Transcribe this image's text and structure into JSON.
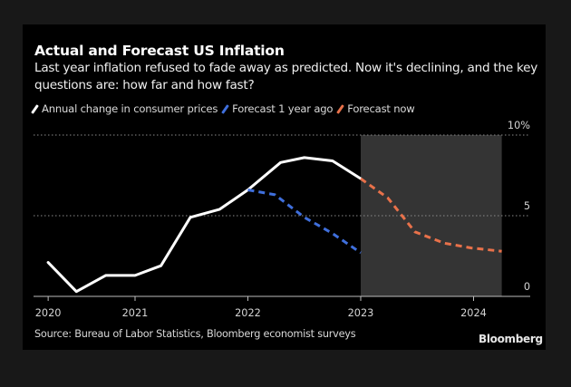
{
  "header": {
    "title": "Actual and Forecast US Inflation",
    "subtitle": "Last year inflation refused to fade away as predicted. Now it's declining, and the key questions are: how far and how fast?"
  },
  "footer": {
    "source": "Source: Bureau of Labor Statistics, Bloomberg economist surveys",
    "brand": "Bloomberg"
  },
  "chart_data": {
    "type": "line",
    "title": "Actual and Forecast US Inflation",
    "subtitle": "Last year inflation refused to fade away as predicted. Now it's declining, and the key questions are: how far and how fast?",
    "xlabel": "",
    "ylabel": "",
    "ylim": [
      0,
      10
    ],
    "y_ticks": [
      {
        "value": 0,
        "label": "0"
      },
      {
        "value": 5,
        "label": "5"
      },
      {
        "value": 10,
        "label": "10%"
      }
    ],
    "x_ticks": [
      {
        "value": 2020.23,
        "label": "2020"
      },
      {
        "value": 2021.0,
        "label": "2021"
      },
      {
        "value": 2022.0,
        "label": "2022"
      },
      {
        "value": 2023.0,
        "label": "2023"
      },
      {
        "value": 2024.0,
        "label": "2024"
      }
    ],
    "xlim": [
      2020.1,
      2025.0
    ],
    "grid": true,
    "legend_position": "top-left",
    "shaded_region": {
      "x_start": 2023.0,
      "x_end": 2024.25,
      "label": "forecast period"
    },
    "series": [
      {
        "name": "Annual change in consumer prices",
        "color": "#ffffff",
        "style": "solid",
        "points": [
          [
            2020.23,
            2.1
          ],
          [
            2020.48,
            0.3
          ],
          [
            2020.74,
            1.3
          ],
          [
            2021.0,
            1.3
          ],
          [
            2021.23,
            1.9
          ],
          [
            2021.49,
            4.9
          ],
          [
            2021.75,
            5.4
          ],
          [
            2022.0,
            6.6
          ],
          [
            2022.29,
            8.3
          ],
          [
            2022.5,
            8.6
          ],
          [
            2022.75,
            8.4
          ],
          [
            2023.0,
            7.3
          ]
        ]
      },
      {
        "name": "Forecast 1 year ago",
        "color": "#3f6fdc",
        "style": "dashed",
        "points": [
          [
            2022.0,
            6.6
          ],
          [
            2022.24,
            6.3
          ],
          [
            2022.5,
            4.9
          ],
          [
            2022.75,
            3.9
          ],
          [
            2023.0,
            2.7
          ]
        ]
      },
      {
        "name": "Forecast now",
        "color": "#e8714a",
        "style": "dashed",
        "points": [
          [
            2023.0,
            7.3
          ],
          [
            2023.24,
            6.1
          ],
          [
            2023.48,
            4.0
          ],
          [
            2023.74,
            3.3
          ],
          [
            2023.98,
            3.0
          ],
          [
            2024.25,
            2.8
          ]
        ]
      }
    ]
  }
}
